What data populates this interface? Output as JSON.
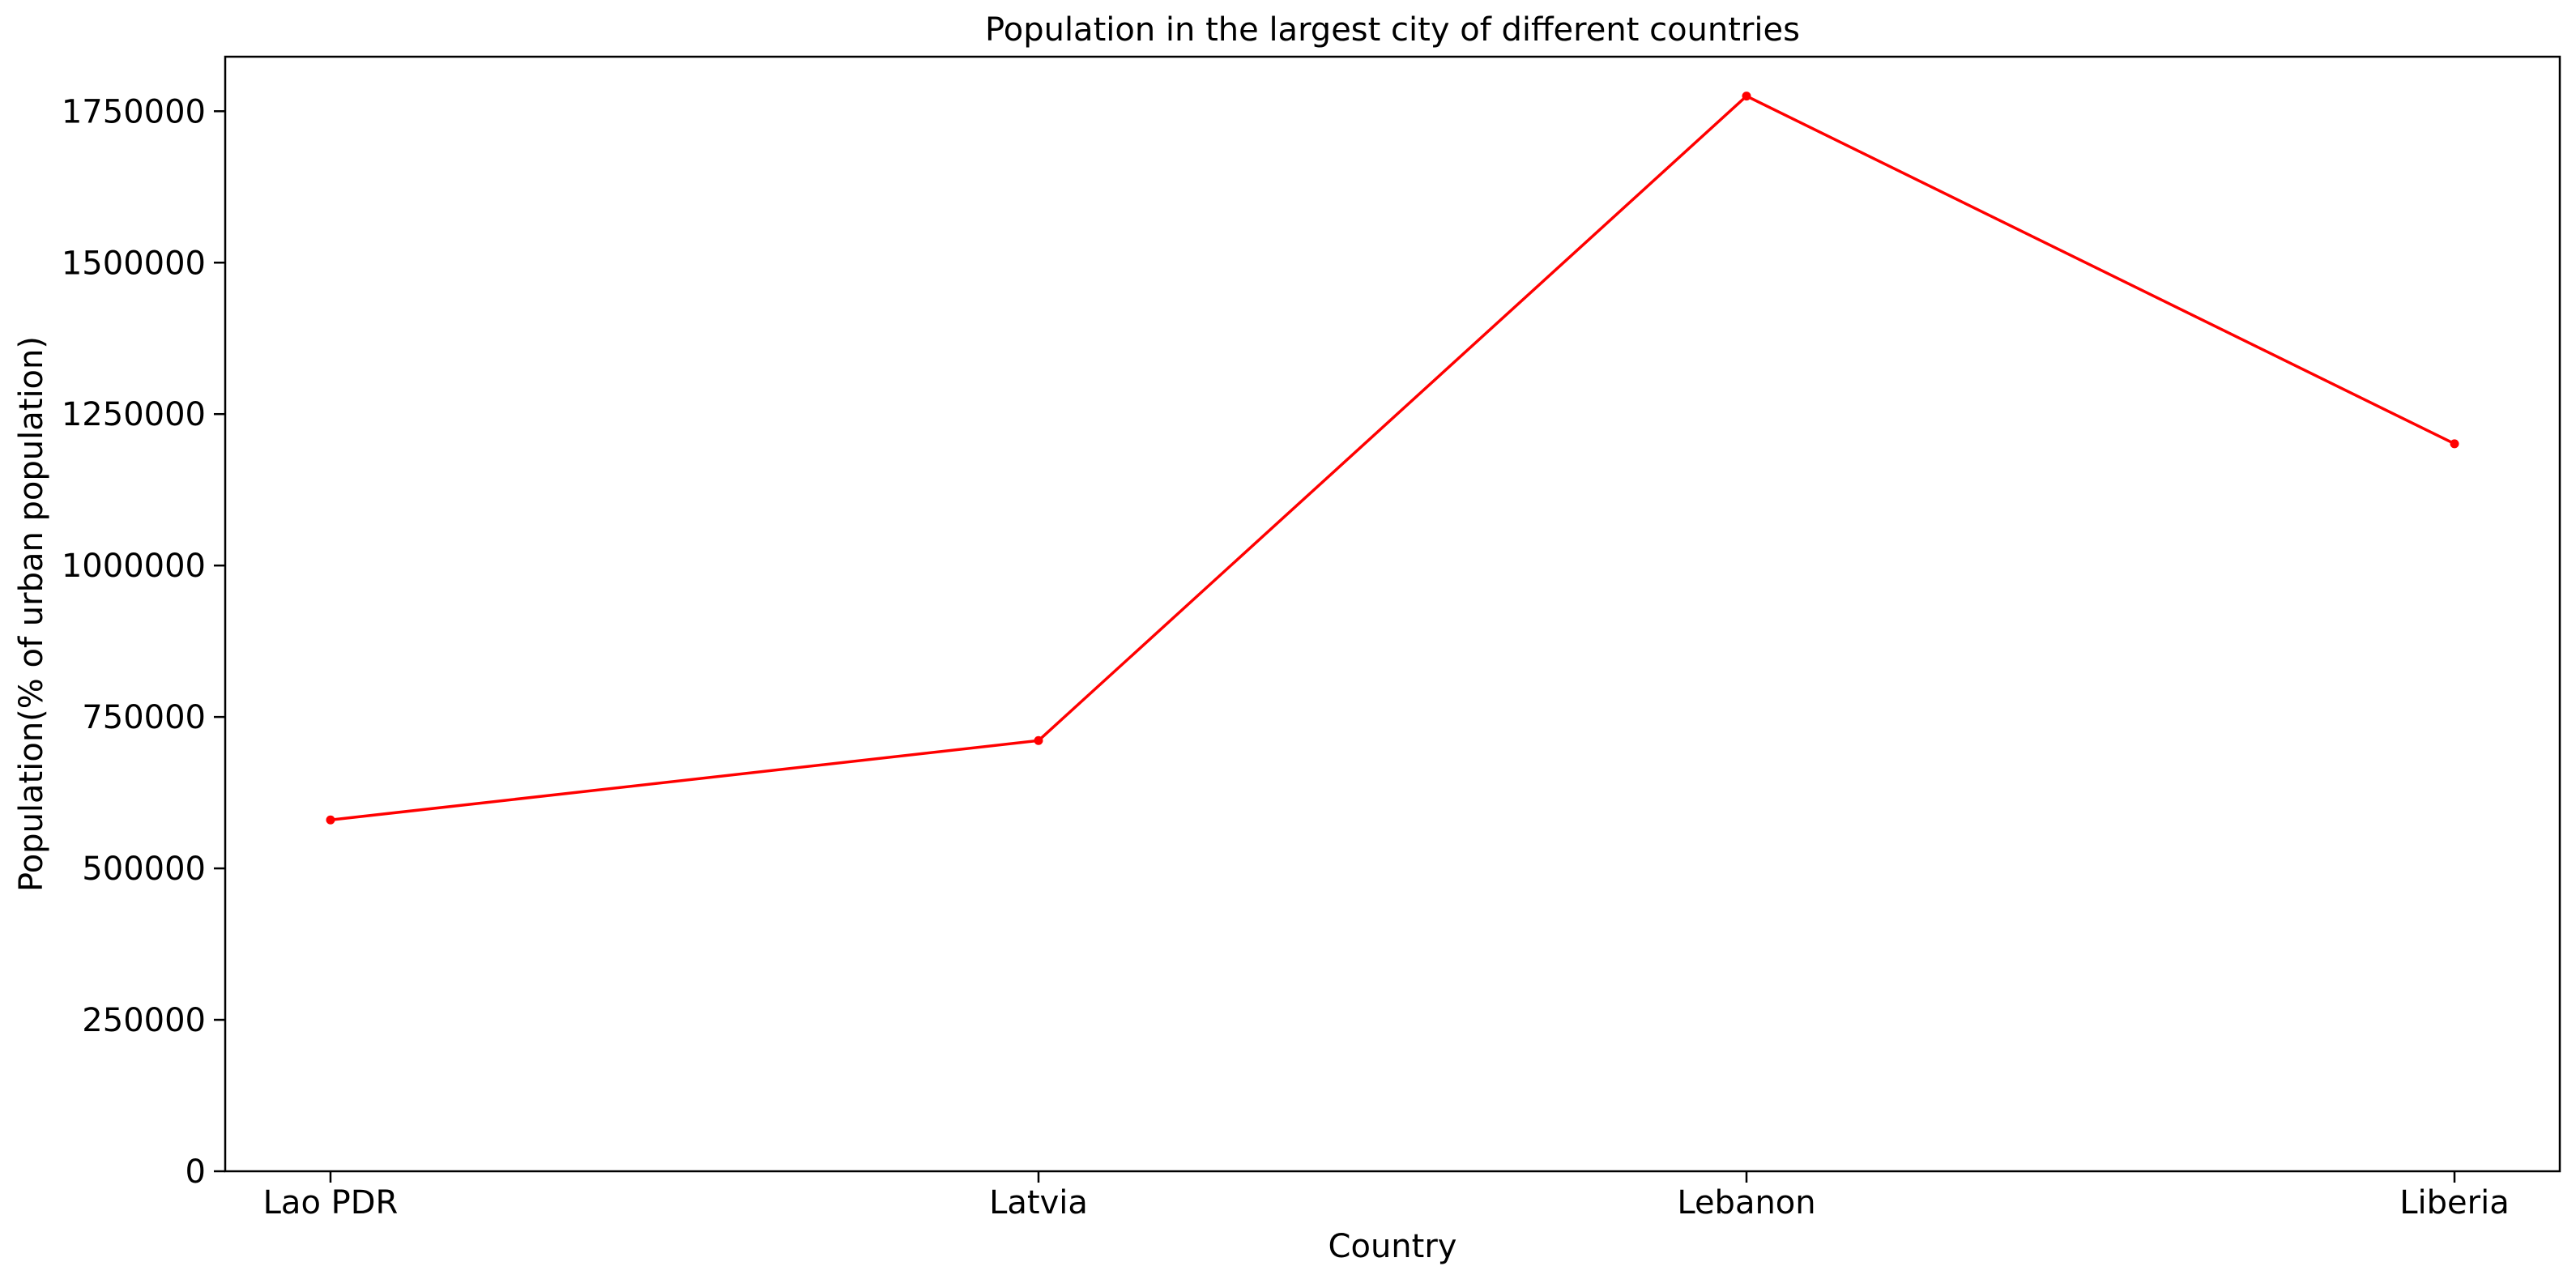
{
  "chart_data": {
    "type": "line",
    "title": "Population in the largest city of different countries",
    "xlabel": "Country",
    "ylabel": "Population(% of urban population)",
    "categories": [
      "Lao PDR",
      "Latvia",
      "Lebanon",
      "Liberia"
    ],
    "series": [
      {
        "values": [
          580000,
          711000,
          1775000,
          1201000
        ],
        "color": "#ff0000",
        "marker": "dot"
      }
    ],
    "ylim": [
      0,
      1840000
    ],
    "yticks": [
      0,
      250000,
      500000,
      750000,
      1000000,
      1250000,
      1500000,
      1750000
    ],
    "ytick_labels": [
      "0",
      "250000",
      "500000",
      "750000",
      "1000000",
      "1250000",
      "1500000",
      "1750000"
    ],
    "grid": false,
    "legend": "none"
  }
}
